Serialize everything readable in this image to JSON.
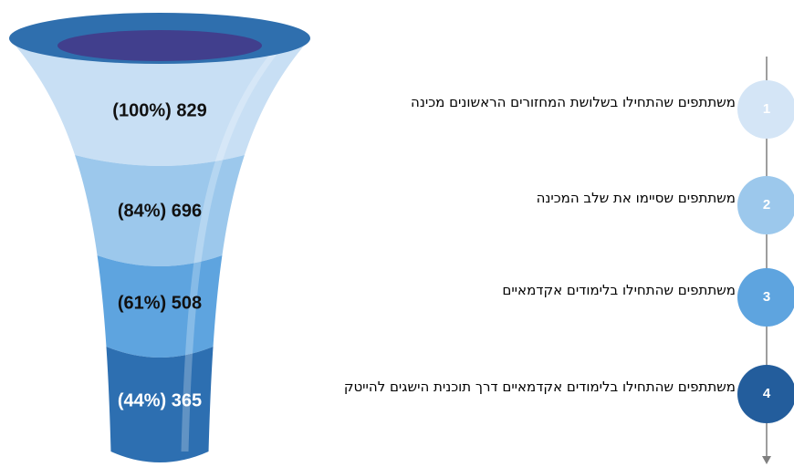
{
  "chart_data": {
    "type": "funnel",
    "categories": [
      "משתתפים שהתחילו בשלושת המחזורים הראשונים מכינה",
      "משתתפים שסיימו את שלב המכינה",
      "משתתפים שהתחילו בלימודים אקדמאיים",
      "משתתפים שהתחילו בלימודים אקדמאיים דרך תוכנית הישגים להייטק"
    ],
    "steps": [
      "1",
      "2",
      "3",
      "4"
    ],
    "values": [
      829,
      696,
      508,
      365
    ],
    "value_labels": [
      "(100%) 829",
      "(84%) 696",
      "(61%) 508",
      "(44%) 365"
    ],
    "colors": [
      "#c8dff4",
      "#9cc8ec",
      "#5ea4df",
      "#2d6fb1"
    ],
    "step_colors": [
      "#d4e5f6",
      "#9cc8ec",
      "#5ea4df",
      "#235d9c"
    ]
  }
}
